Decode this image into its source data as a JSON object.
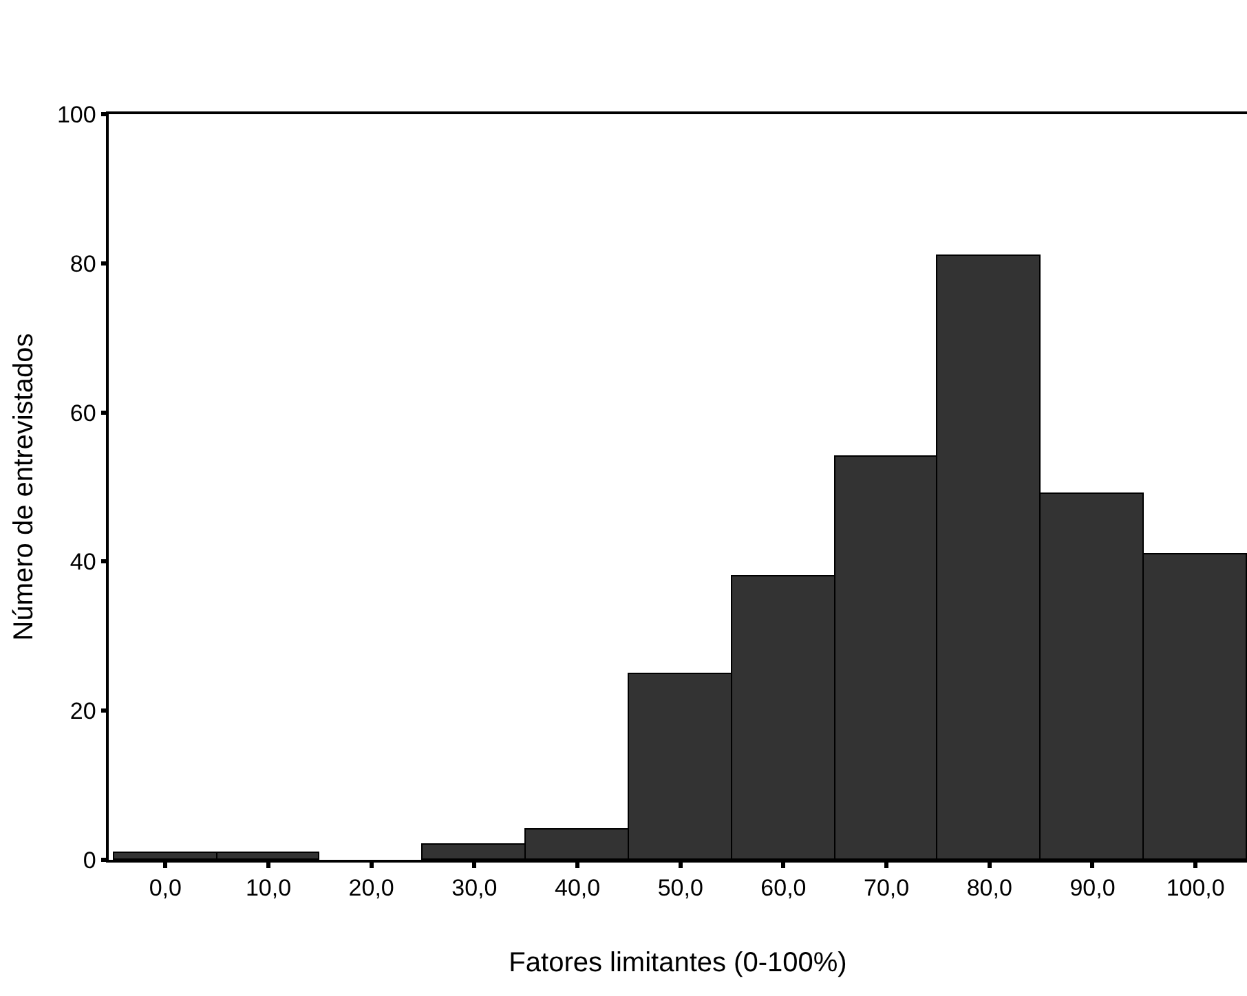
{
  "chart_data": {
    "type": "histogram",
    "xlabel": "Fatores limitantes (0-100%)",
    "ylabel": "Número de entrevistados",
    "bins": [
      -5,
      5,
      15,
      25,
      35,
      45,
      55,
      65,
      75,
      85,
      95,
      105
    ],
    "values": [
      1,
      1,
      0,
      2,
      4,
      25,
      38,
      54,
      81,
      49,
      41
    ],
    "color": "#333333",
    "xlim": [
      -5.5,
      105
    ],
    "xticks": [
      {
        "value": 0,
        "label": "0,0"
      },
      {
        "value": 10,
        "label": "10,0"
      },
      {
        "value": 20,
        "label": "20,0"
      },
      {
        "value": 30,
        "label": "30,0"
      },
      {
        "value": 40,
        "label": "40,0"
      },
      {
        "value": 50,
        "label": "50,0"
      },
      {
        "value": 60,
        "label": "60,0"
      },
      {
        "value": 70,
        "label": "70,0"
      },
      {
        "value": 80,
        "label": "80,0"
      },
      {
        "value": 90,
        "label": "90,0"
      },
      {
        "value": 100,
        "label": "100,0"
      }
    ],
    "ylim": [
      0,
      100
    ],
    "yticks": [
      0,
      20,
      40,
      60,
      80,
      100
    ]
  }
}
